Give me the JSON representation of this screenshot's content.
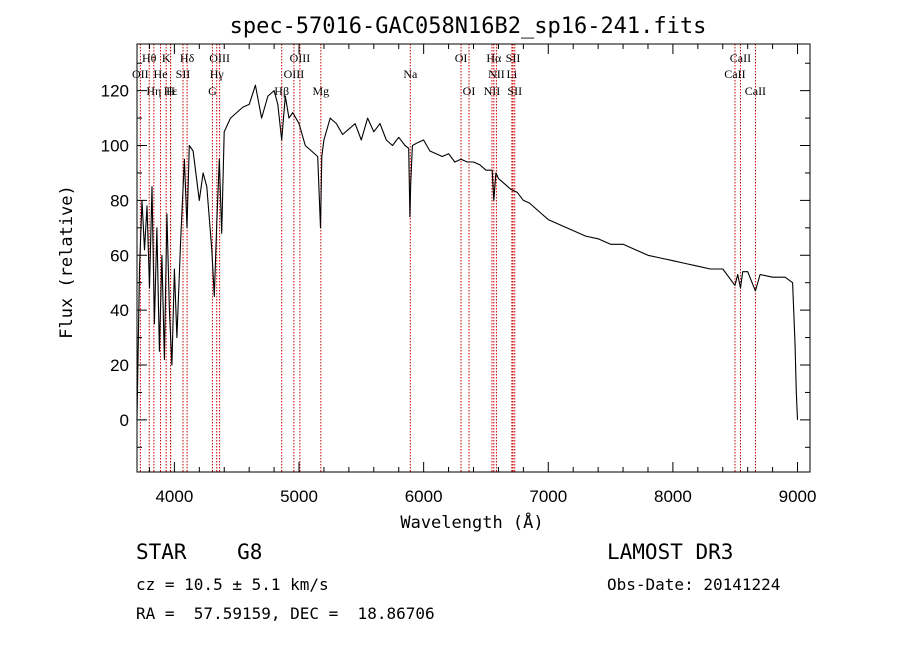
{
  "chart_data": {
    "type": "line",
    "title": "spec-57016-GAC058N16B2_sp16-241.fits",
    "xlabel": "Wavelength (Å)",
    "ylabel": "Flux (relative)",
    "xlim": [
      3700,
      9100
    ],
    "ylim": [
      -19,
      137
    ],
    "xticks": [
      4000,
      5000,
      6000,
      7000,
      8000,
      9000
    ],
    "yticks": [
      0,
      20,
      40,
      60,
      80,
      100,
      120
    ],
    "series": [
      {
        "name": "spectrum",
        "x": [
          3700,
          3720,
          3740,
          3760,
          3780,
          3800,
          3820,
          3840,
          3860,
          3880,
          3900,
          3920,
          3940,
          3960,
          3980,
          4000,
          4020,
          4050,
          4080,
          4101,
          4120,
          4150,
          4200,
          4230,
          4260,
          4300,
          4320,
          4340,
          4360,
          4380,
          4400,
          4450,
          4500,
          4550,
          4600,
          4650,
          4700,
          4750,
          4800,
          4830,
          4861,
          4890,
          4920,
          4950,
          5000,
          5050,
          5100,
          5150,
          5172,
          5183,
          5200,
          5250,
          5300,
          5350,
          5400,
          5450,
          5500,
          5550,
          5600,
          5650,
          5700,
          5750,
          5800,
          5850,
          5880,
          5890,
          5896,
          5910,
          5950,
          6000,
          6050,
          6100,
          6150,
          6200,
          6250,
          6300,
          6350,
          6400,
          6450,
          6500,
          6550,
          6563,
          6580,
          6600,
          6650,
          6700,
          6750,
          6800,
          6850,
          6900,
          6950,
          7000,
          7100,
          7200,
          7300,
          7400,
          7500,
          7600,
          7700,
          7800,
          7900,
          8000,
          8100,
          8200,
          8300,
          8400,
          8498,
          8520,
          8542,
          8560,
          8600,
          8662,
          8700,
          8800,
          8900,
          8960,
          8980,
          8990,
          9000
        ],
        "y": [
          0,
          55,
          80,
          62,
          78,
          48,
          85,
          35,
          70,
          25,
          60,
          22,
          75,
          40,
          20,
          55,
          30,
          65,
          95,
          70,
          100,
          98,
          80,
          90,
          85,
          62,
          45,
          72,
          95,
          68,
          105,
          110,
          112,
          114,
          115,
          122,
          110,
          118,
          120,
          115,
          102,
          118,
          110,
          112,
          108,
          100,
          98,
          96,
          70,
          96,
          102,
          110,
          108,
          104,
          106,
          108,
          102,
          110,
          105,
          108,
          102,
          100,
          103,
          100,
          99,
          74,
          86,
          100,
          101,
          102,
          98,
          97,
          96,
          97,
          94,
          95,
          94,
          94,
          93,
          91,
          91,
          80,
          90,
          88,
          86,
          84,
          83,
          80,
          79,
          77,
          75,
          73,
          71,
          69,
          67,
          66,
          64,
          64,
          62,
          60,
          59,
          58,
          57,
          56,
          55,
          55,
          49,
          53,
          48,
          54,
          54,
          47,
          53,
          52,
          52,
          50,
          28,
          10,
          0
        ]
      }
    ],
    "spectral_lines": [
      {
        "label": "Hθ",
        "x": 3798,
        "row": 1
      },
      {
        "label": "OII",
        "x": 3727,
        "row": 2
      },
      {
        "label": "Hη",
        "x": 3835,
        "row": 3
      },
      {
        "label": "He",
        "x": 3889,
        "row": 2
      },
      {
        "label": "Hε",
        "x": 3970,
        "row": 3
      },
      {
        "label": "K",
        "x": 3934,
        "row": 1
      },
      {
        "label": "H",
        "x": 3969,
        "row": 3
      },
      {
        "label": "SII",
        "x": 4069,
        "row": 2
      },
      {
        "label": "Hδ",
        "x": 4102,
        "row": 1
      },
      {
        "label": "OIII",
        "x": 4363,
        "row": 1
      },
      {
        "label": "Hγ",
        "x": 4340,
        "row": 2
      },
      {
        "label": "G",
        "x": 4305,
        "row": 3
      },
      {
        "label": "OIII",
        "x": 5007,
        "row": 1
      },
      {
        "label": "OIII",
        "x": 4959,
        "row": 2
      },
      {
        "label": "Hβ",
        "x": 4861,
        "row": 3
      },
      {
        "label": "Mg",
        "x": 5175,
        "row": 3
      },
      {
        "label": "Na",
        "x": 5893,
        "row": 2
      },
      {
        "label": "OI",
        "x": 6300,
        "row": 1
      },
      {
        "label": "OI",
        "x": 6364,
        "row": 3
      },
      {
        "label": "Hα",
        "x": 6563,
        "row": 1
      },
      {
        "label": "NII",
        "x": 6584,
        "row": 2
      },
      {
        "label": "NII",
        "x": 6548,
        "row": 3
      },
      {
        "label": "SII",
        "x": 6717,
        "row": 1
      },
      {
        "label": "Li",
        "x": 6708,
        "row": 2
      },
      {
        "label": "SII",
        "x": 6731,
        "row": 3
      },
      {
        "label": "CaII",
        "x": 8542,
        "row": 1
      },
      {
        "label": "CaII",
        "x": 8498,
        "row": 2
      },
      {
        "label": "CaII",
        "x": 8662,
        "row": 3
      }
    ]
  },
  "info": {
    "classification": "STAR    G8",
    "survey": "LAMOST DR3",
    "redshift": "cz = 10.5 ± 5.1 km/s",
    "obs_date": "Obs-Date: 20141224",
    "coords": "RA =  57.59159, DEC =  18.86706"
  }
}
